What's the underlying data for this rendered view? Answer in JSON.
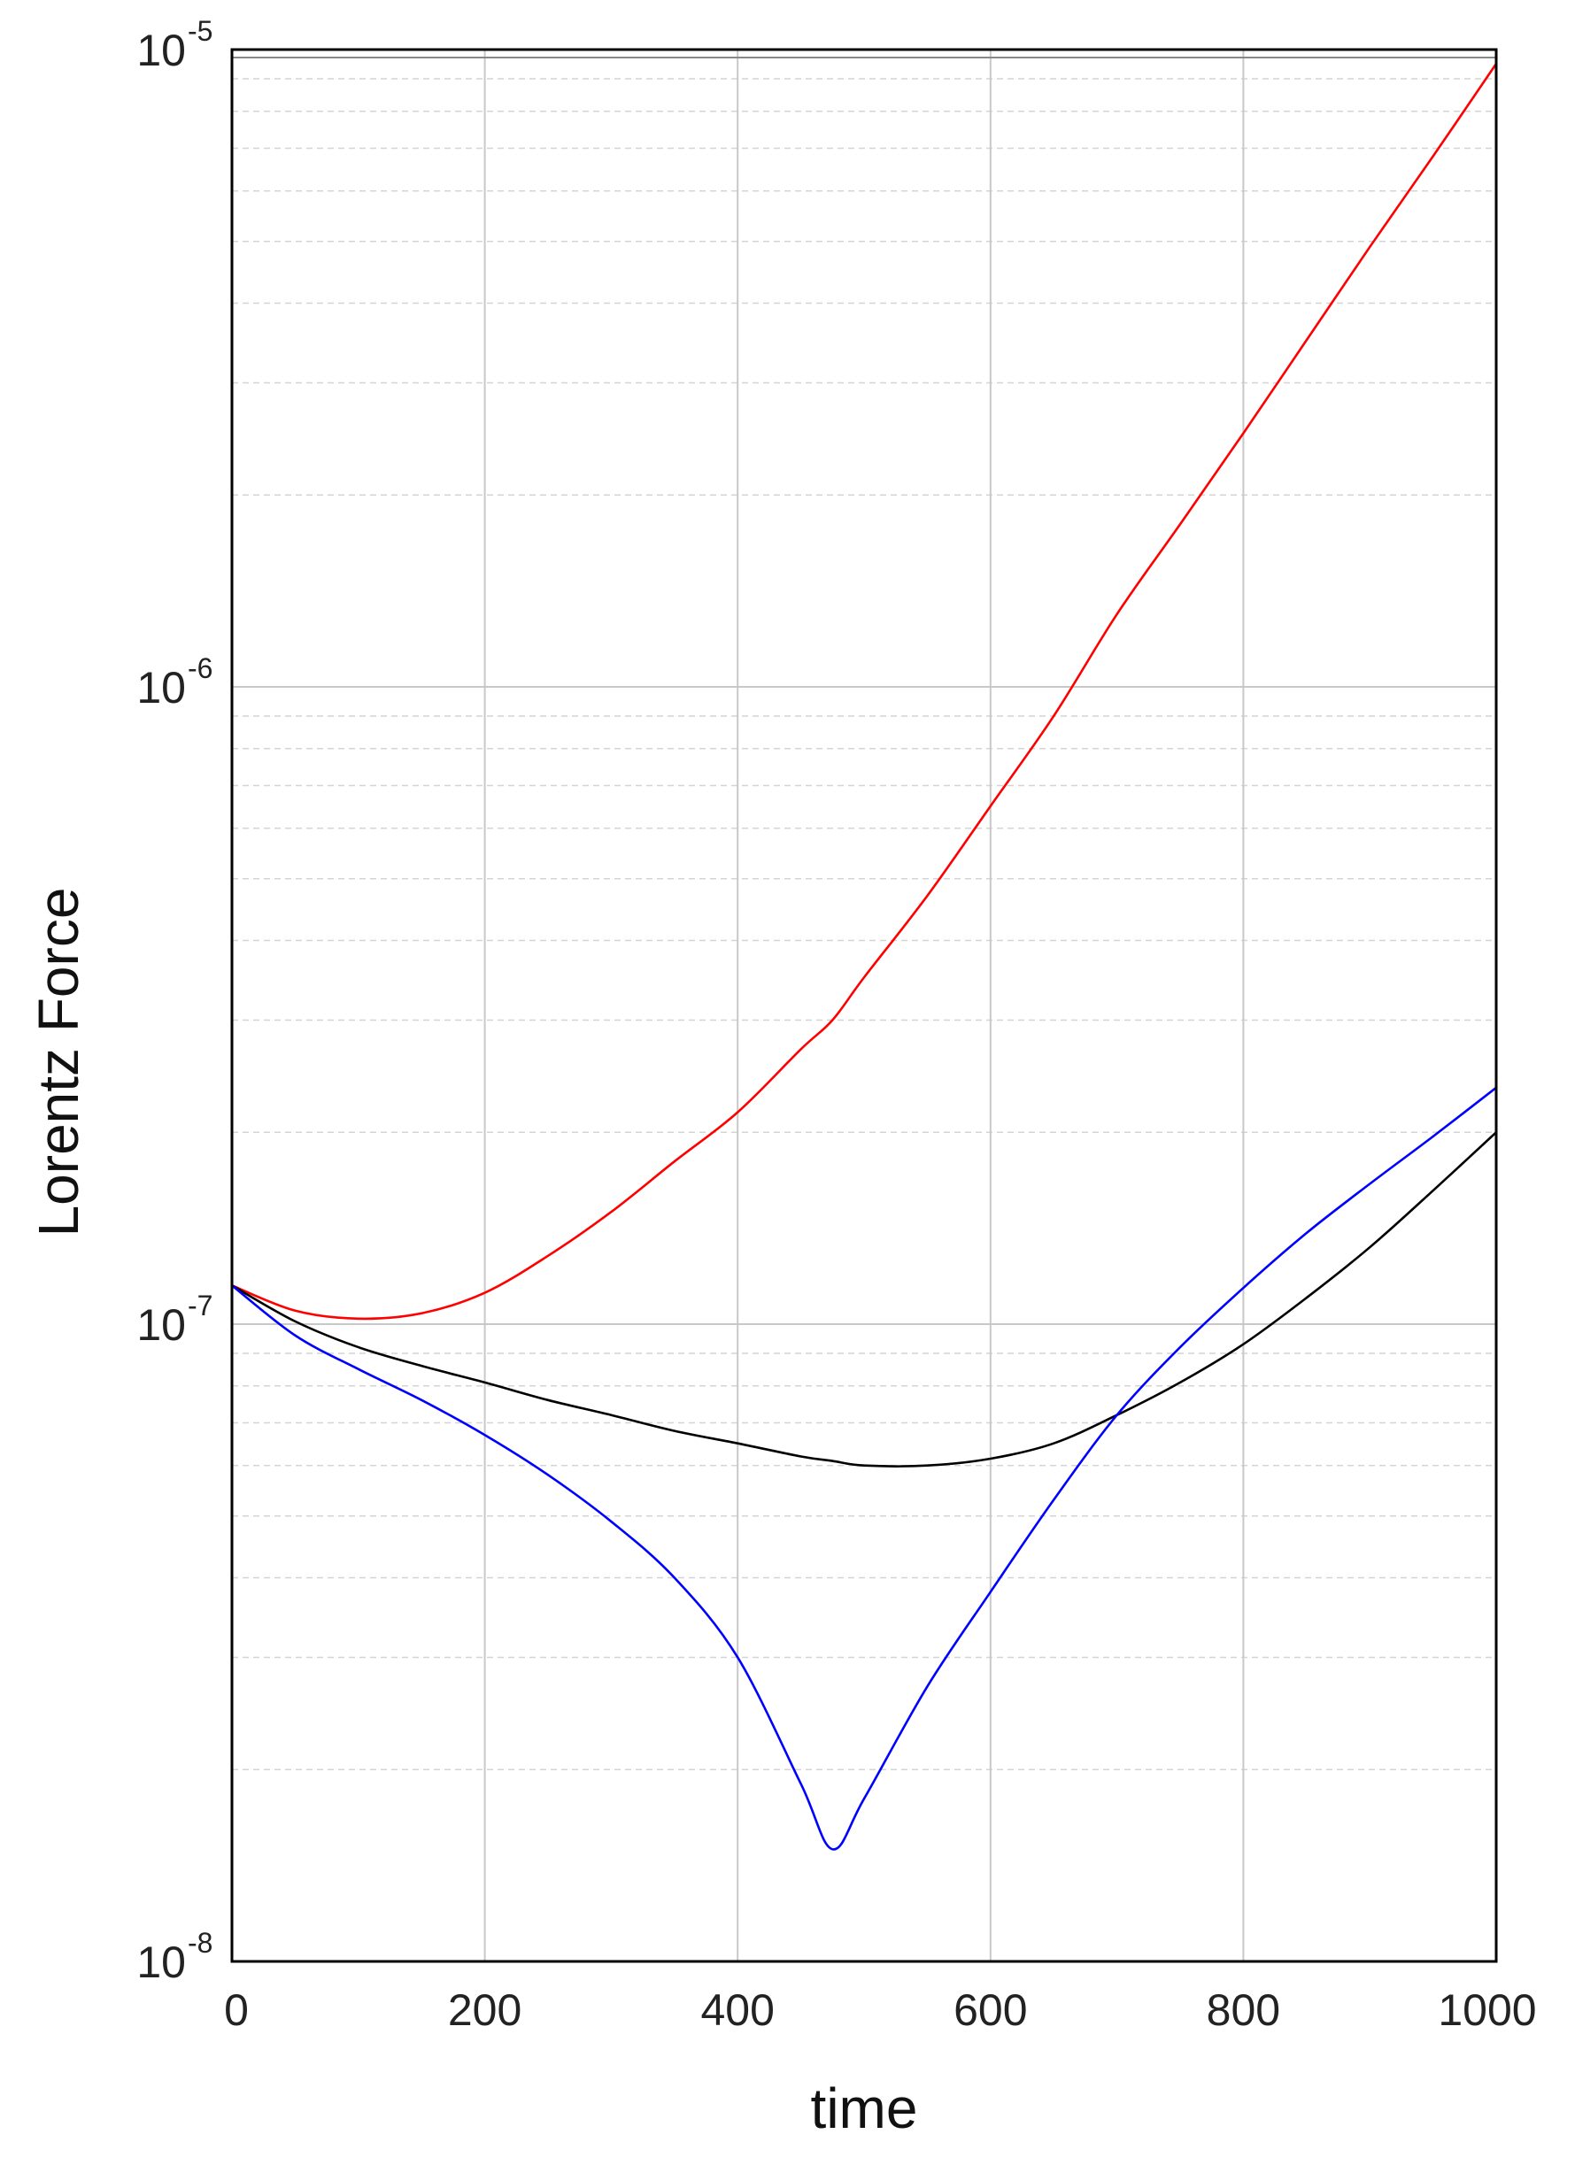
{
  "chart_data": {
    "type": "line",
    "title": "",
    "xlabel": "time",
    "ylabel": "Lorentz Force",
    "xlim": [
      0,
      1000
    ],
    "ylim": [
      1e-08,
      1e-05
    ],
    "yscale": "log",
    "grid": true,
    "legend": "none",
    "x_ticks": [
      "0",
      "200",
      "400",
      "600",
      "800",
      "1000"
    ],
    "y_ticks": [
      {
        "base": "10",
        "exp": "-8"
      },
      {
        "base": "10",
        "exp": "-7"
      },
      {
        "base": "10",
        "exp": "-6"
      },
      {
        "base": "10",
        "exp": "-5"
      }
    ],
    "x": [
      0,
      50,
      100,
      150,
      200,
      250,
      300,
      350,
      400,
      450,
      475,
      500,
      550,
      600,
      650,
      700,
      750,
      800,
      850,
      900,
      950,
      1000
    ],
    "series": [
      {
        "color": "#ff0000",
        "values": [
          1.15e-07,
          1.05e-07,
          1.02e-07,
          1.04e-07,
          1.12e-07,
          1.28e-07,
          1.5e-07,
          1.8e-07,
          2.15e-07,
          2.7e-07,
          3e-07,
          3.5e-07,
          4.7e-07,
          6.5e-07,
          9e-07,
          1.3e-06,
          1.8e-06,
          2.5e-06,
          3.5e-06,
          4.9e-06,
          6.8e-06,
          9.5e-06
        ]
      },
      {
        "color": "#000000",
        "values": [
          1.15e-07,
          1.01e-07,
          9.2e-08,
          8.6e-08,
          8.1e-08,
          7.6e-08,
          7.2e-08,
          6.8e-08,
          6.5e-08,
          6.2e-08,
          6.1e-08,
          6e-08,
          6e-08,
          6.15e-08,
          6.5e-08,
          7.2e-08,
          8.1e-08,
          9.3e-08,
          1.1e-07,
          1.32e-07,
          1.62e-07,
          2e-07
        ]
      },
      {
        "color": "#0000ff",
        "values": [
          1.15e-07,
          9.6e-08,
          8.5e-08,
          7.6e-08,
          6.7e-08,
          5.8e-08,
          4.9e-08,
          4e-08,
          3e-08,
          1.9e-08,
          1.5e-08,
          1.8e-08,
          2.7e-08,
          3.8e-08,
          5.3e-08,
          7.2e-08,
          9.2e-08,
          1.14e-07,
          1.39e-07,
          1.66e-07,
          1.97e-07,
          2.35e-07
        ]
      }
    ]
  }
}
